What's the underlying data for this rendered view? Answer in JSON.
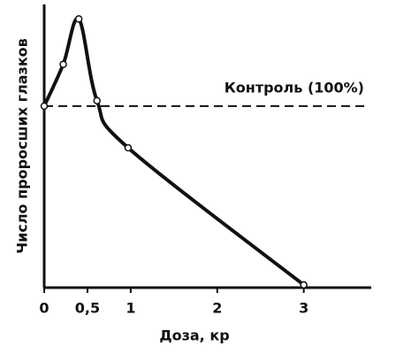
{
  "chart_data": {
    "type": "line",
    "xlabel": "Доза, кр",
    "ylabel": "Число проросших глазков",
    "x": [
      0,
      0.22,
      0.4,
      0.61,
      0.97,
      3
    ],
    "series": [
      {
        "color": "#111111",
        "values": [
          100,
          123,
          148,
          103,
          77,
          1.5
        ]
      }
    ],
    "xlim": [
      0,
      3.78
    ],
    "ylim": [
      0,
      156
    ],
    "xticks": [
      0,
      {
        "value": 0.5,
        "label": "0,5"
      },
      1,
      2,
      3
    ],
    "reference_line": {
      "value": 100,
      "label": "Контроль (100%)"
    }
  }
}
